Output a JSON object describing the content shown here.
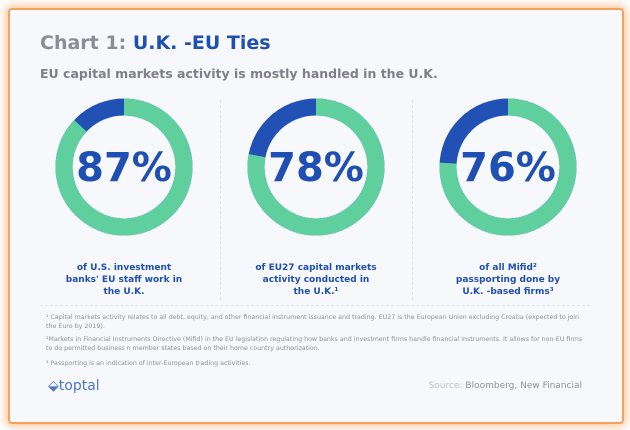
{
  "chart_data": {
    "type": "pie",
    "title": "Chart 1:",
    "title_highlight": "U.K. -EU Ties",
    "subtitle": "EU capital markets activity is mostly handled in the U.K.",
    "items": [
      {
        "value": 87,
        "label": "87%",
        "caption": [
          "of U.S. investment",
          "banks' EU staff work in",
          "the U.K."
        ]
      },
      {
        "value": 78,
        "label": "78%",
        "caption": [
          "of EU27 capital markets",
          "activity conducted in",
          "the U.K.¹"
        ]
      },
      {
        "value": 76,
        "label": "76%",
        "caption": [
          "of all Mifid²",
          "passporting done by",
          "U.K. -based firms³"
        ]
      }
    ],
    "colors": {
      "main": "#5fcf9e",
      "rest": "#2151b5"
    }
  },
  "notes": [
    "¹ Capital markets activity relates to all debt, equity, and other financial instrument issuance and trading. EU27 is the European Union excluding Croatia (expected to join the Euro by 2019).",
    "²Markets in Financial Instruments Directive (Mifid) in the EU legislation regulating how banks and investment firms handle financial instruments. It allows for non-EU firms to do permitted business n member states based on their home country authorization.",
    "³ Passporting is an indication of inter-European trading activities."
  ],
  "logo": "toptal",
  "source_label": "Source:",
  "source": "Bloomberg, New Financial"
}
